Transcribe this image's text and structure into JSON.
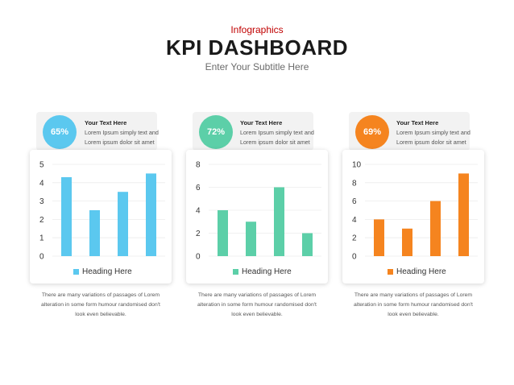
{
  "header": {
    "eyebrow": "Infographics",
    "title": "KPI DASHBOARD",
    "subtitle": "Enter Your Subtitle Here"
  },
  "kpis": [
    {
      "percent": "65%",
      "color": "#5bc8ef",
      "heading": "Your Text Here",
      "body_line1": "Lorem Ipsum simply text and",
      "body_line2": "Lorem ipsum dolor sit amet",
      "legend": "Heading Here",
      "desc_line1": "There are many variations of passages of Lorem",
      "desc_line2": "alteration in some form humour randomised don't",
      "desc_line3": "look even believable."
    },
    {
      "percent": "72%",
      "color": "#5ccfa8",
      "heading": "Your Text Here",
      "body_line1": "Lorem Ipsum simply text and",
      "body_line2": "Lorem ipsum dolor sit amet",
      "legend": "Heading Here",
      "desc_line1": "There are many variations of passages of Lorem",
      "desc_line2": "alteration in some form humour randomised don't",
      "desc_line3": "look even believable."
    },
    {
      "percent": "69%",
      "color": "#f5841f",
      "heading": "Your Text Here",
      "body_line1": "Lorem Ipsum simply text and",
      "body_line2": "Lorem ipsum dolor sit amet",
      "legend": "Heading Here",
      "desc_line1": "There are many variations of passages of Lorem",
      "desc_line2": "alteration in some form humour randomised don't",
      "desc_line3": "look even believable."
    }
  ],
  "chart_data": [
    {
      "type": "bar",
      "color": "#5bc8ef",
      "values": [
        4.3,
        2.5,
        3.5,
        4.5
      ],
      "ylim": [
        0,
        5
      ],
      "yticks": [
        0,
        1,
        2,
        3,
        4,
        5
      ],
      "series": [
        {
          "name": "Heading Here",
          "values": [
            4.3,
            2.5,
            3.5,
            4.5
          ]
        }
      ],
      "legend_position": "bottom",
      "grid": true
    },
    {
      "type": "bar",
      "color": "#5ccfa8",
      "values": [
        4,
        3,
        6,
        2
      ],
      "ylim": [
        0,
        8
      ],
      "yticks": [
        0,
        2,
        4,
        6,
        8
      ],
      "series": [
        {
          "name": "Heading Here",
          "values": [
            4,
            3,
            6,
            2
          ]
        }
      ],
      "legend_position": "bottom",
      "grid": true
    },
    {
      "type": "bar",
      "color": "#f5841f",
      "values": [
        4,
        3,
        6,
        9
      ],
      "ylim": [
        0,
        10
      ],
      "yticks": [
        0,
        2,
        4,
        6,
        8,
        10
      ],
      "series": [
        {
          "name": "Heading Here",
          "values": [
            4,
            3,
            6,
            9
          ]
        }
      ],
      "legend_position": "bottom",
      "grid": true
    }
  ]
}
